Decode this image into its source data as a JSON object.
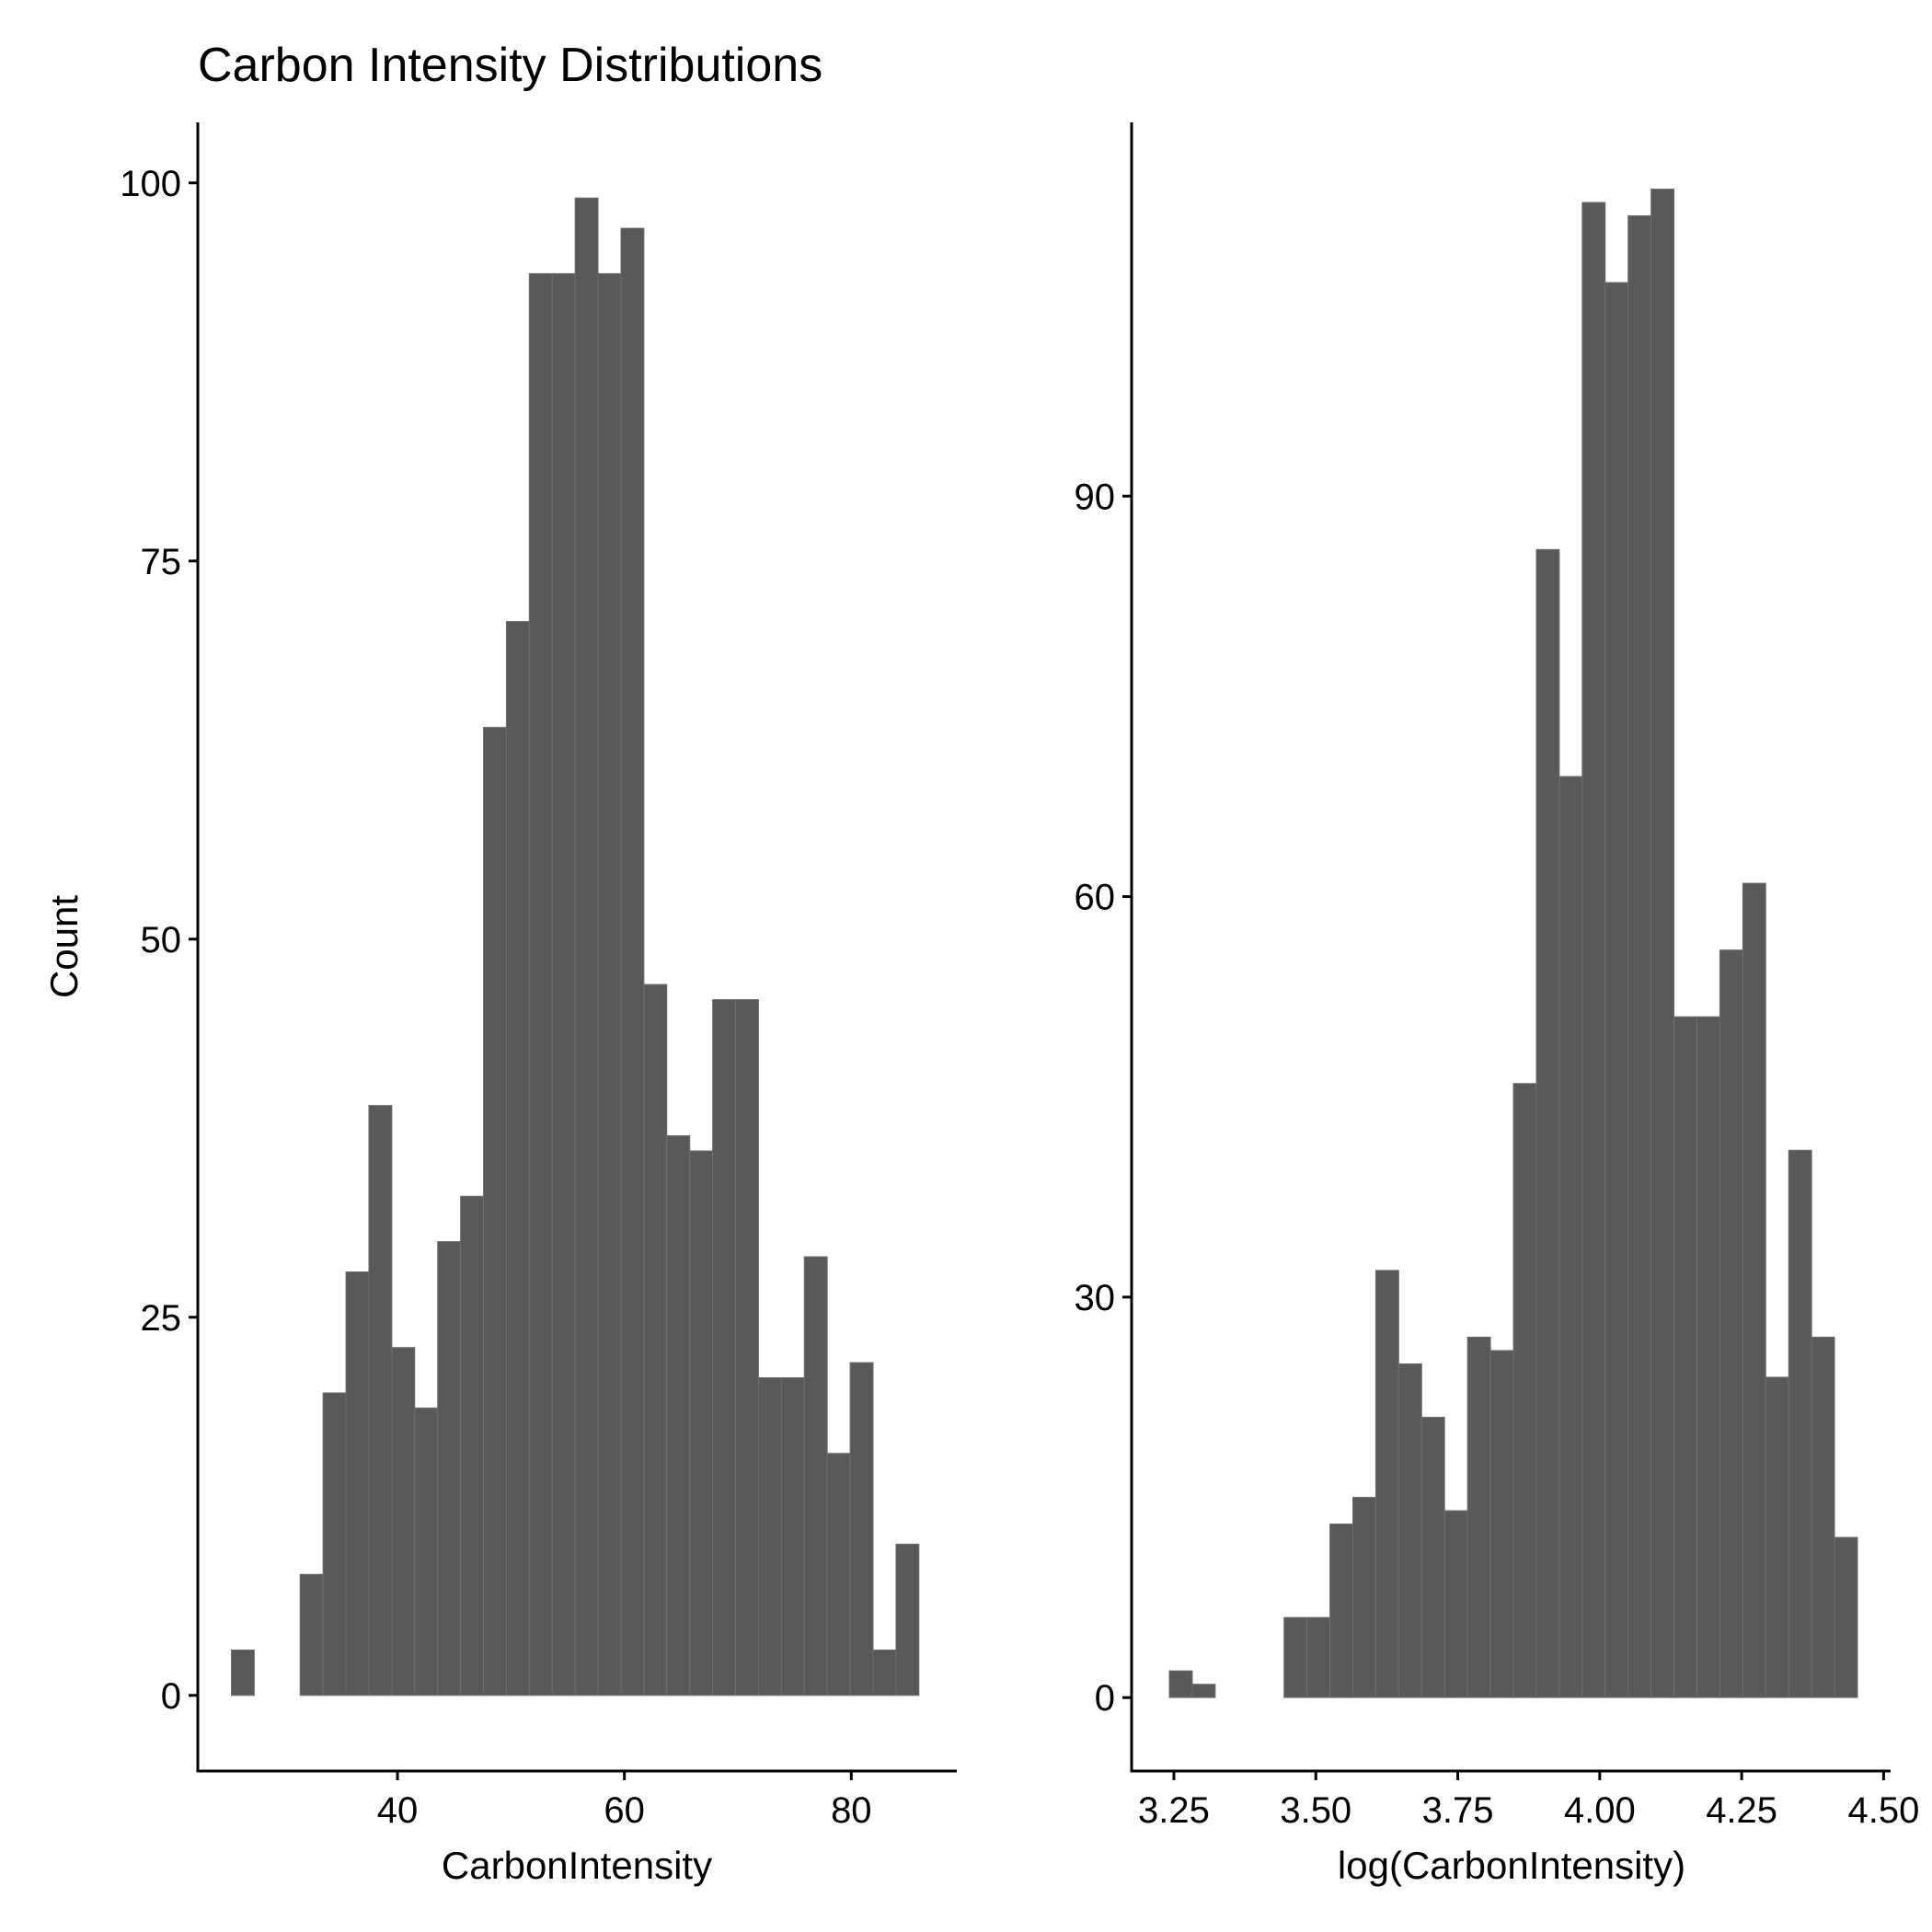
{
  "colors": {
    "bar_fill": "#595959",
    "bar_stroke": "#6e6e6e",
    "axis": "#000000",
    "background": "#ffffff"
  },
  "chart_data": [
    {
      "type": "bar",
      "title": "Carbon Intensity Distributions",
      "xlabel": "CarbonIntensity",
      "ylabel": "Count",
      "grid": false,
      "xlim": [
        22.4,
        89.3
      ],
      "ylim": [
        -5,
        104
      ],
      "xticks": [
        40,
        60,
        80
      ],
      "xtick_labels": [
        "40",
        "60",
        "80"
      ],
      "yticks": [
        0,
        25,
        50,
        75,
        100
      ],
      "ytick_labels": [
        "0",
        "25",
        "50",
        "75",
        "100"
      ],
      "bin_width": 2.02,
      "bin_starts": [
        25.36,
        27.38,
        29.4,
        31.42,
        33.44,
        35.46,
        37.48,
        39.5,
        41.52,
        43.54,
        45.56,
        47.58,
        49.6,
        51.62,
        53.64,
        55.66,
        57.68,
        59.7,
        61.72,
        63.74,
        65.76,
        67.78,
        69.8,
        71.82,
        73.84,
        75.86,
        77.88,
        79.9,
        81.92,
        83.94,
        85.96
      ],
      "values": [
        3,
        0,
        0,
        8,
        20,
        28,
        39,
        23,
        19,
        30,
        33,
        64,
        71,
        94,
        94,
        99,
        94,
        97,
        47,
        37,
        36,
        46,
        46,
        21,
        21,
        29,
        16,
        22,
        3,
        10,
        0
      ]
    },
    {
      "type": "bar",
      "title": "",
      "xlabel": "log(CarbonIntensity)",
      "ylabel": "",
      "grid": false,
      "xlim": [
        3.1755,
        4.5123
      ],
      "ylim": [
        -5.5,
        118
      ],
      "xticks": [
        3.25,
        3.5,
        3.75,
        4.0,
        4.25,
        4.5
      ],
      "xtick_labels": [
        "3.25",
        "3.50",
        "3.75",
        "4.00",
        "4.25",
        "4.50"
      ],
      "yticks": [
        0,
        30,
        60,
        90
      ],
      "ytick_labels": [
        "0",
        "30",
        "60",
        "90"
      ],
      "bin_width": 0.0404,
      "bin_starts": [
        3.242,
        3.2824,
        3.3228,
        3.3632,
        3.4036,
        3.444,
        3.4844,
        3.5248,
        3.5652,
        3.6056,
        3.646,
        3.6864,
        3.7268,
        3.7672,
        3.8076,
        3.848,
        3.8884,
        3.9288,
        3.9692,
        4.0096,
        4.05,
        4.0904,
        4.1308,
        4.1712,
        4.2116,
        4.252,
        4.2924,
        4.3328,
        4.3732,
        4.4136
      ],
      "values": [
        2,
        1,
        0,
        0,
        0,
        6,
        6,
        13,
        15,
        32,
        25,
        21,
        14,
        27,
        26,
        46,
        86,
        69,
        112,
        106,
        111,
        113,
        51,
        51,
        56,
        61,
        24,
        41,
        27,
        12
      ]
    }
  ]
}
